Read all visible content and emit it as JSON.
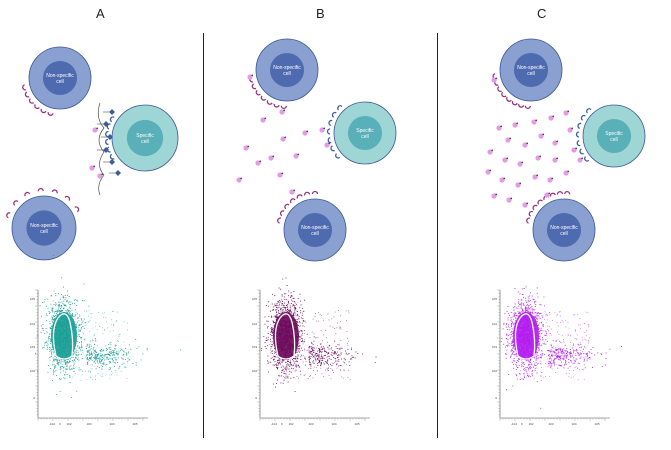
{
  "panels": [
    {
      "letter": "A",
      "nonspecific_label_1": "Non-specific",
      "nonspecific_label_2": "cell",
      "specific_label_1": "Specific",
      "specific_label_2": "cell",
      "plot_color": "#1a9e96"
    },
    {
      "letter": "B",
      "nonspecific_label_1": "Non-specific",
      "nonspecific_label_2": "cell",
      "specific_label_1": "Specific",
      "specific_label_2": "cell",
      "plot_color": "#6d0a5c"
    },
    {
      "letter": "C",
      "nonspecific_label_1": "Non-specific",
      "nonspecific_label_2": "cell",
      "specific_label_1": "Specific",
      "specific_label_2": "cell",
      "plot_color": "#b21cf0"
    }
  ],
  "colors": {
    "nonspecific_outer": "#8aa0d0",
    "nonspecific_inner": "#4f6bb0",
    "specific_outer": "#9ed6d6",
    "specific_inner": "#5ab0b8",
    "receptor": "#9a2f7c",
    "receptor_blue": "#3c5c9c",
    "molecule": "#e59ae8",
    "molecule_core": "#444"
  },
  "x_ticks": [
    "-104",
    "0",
    "102",
    "103",
    "104",
    "105"
  ],
  "y_ticks": [
    "105",
    "104",
    "103",
    "102",
    "0"
  ]
}
